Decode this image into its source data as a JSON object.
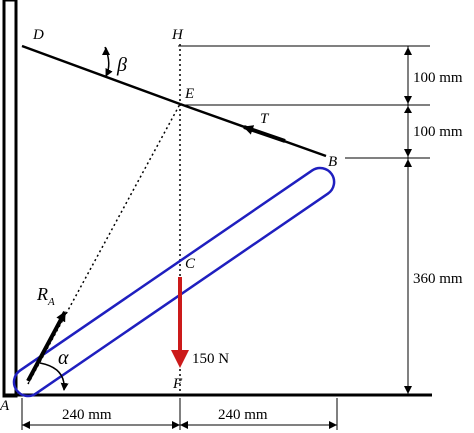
{
  "points": {
    "A": "A",
    "B": "B",
    "C": "C",
    "D": "D",
    "E": "E",
    "F": "F",
    "H": "H"
  },
  "angles": {
    "alpha": "α",
    "beta": "β"
  },
  "forces": {
    "tension": "T",
    "reaction_base": "R",
    "reaction_sub": "A",
    "load": "150 N"
  },
  "dimensions": {
    "horizontal": [
      "240 mm",
      "240 mm"
    ],
    "vertical": [
      "100 mm",
      "100 mm",
      "360 mm"
    ]
  },
  "colors": {
    "rod": "#1f1fbf",
    "load_arrow": "#cc1a1a",
    "ink": "#000000"
  }
}
